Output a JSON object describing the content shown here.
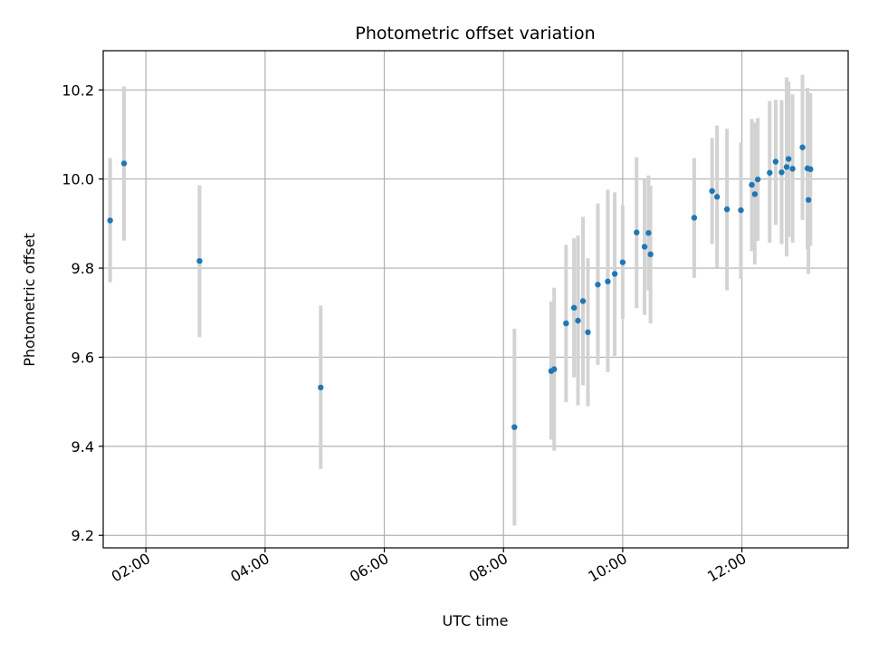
{
  "chart_data": {
    "type": "scatter",
    "title": "Photometric offset variation",
    "xlabel": "UTC time",
    "ylabel": "Photometric offset",
    "x_format": "HH:MM",
    "xlim": [
      "01:17",
      "13:47"
    ],
    "ylim": [
      9.172,
      10.288
    ],
    "x_ticks": [
      "02:00",
      "04:00",
      "06:00",
      "08:00",
      "10:00",
      "12:00"
    ],
    "y_ticks": [
      "9.2",
      "9.4",
      "9.6",
      "9.8",
      "10.0",
      "10.2"
    ],
    "grid": true,
    "legend": "none",
    "marker_color": "#1f77b4",
    "errorbar_color": "#d3d3d3",
    "series": [
      {
        "points": [
          {
            "x": "01:24",
            "y": 9.907,
            "ylo": 9.768,
            "yhi": 10.047
          },
          {
            "x": "01:38",
            "y": 10.035,
            "ylo": 9.862,
            "yhi": 10.208
          },
          {
            "x": "02:54",
            "y": 9.816,
            "ylo": 9.645,
            "yhi": 9.986
          },
          {
            "x": "04:56",
            "y": 9.532,
            "ylo": 9.349,
            "yhi": 9.716
          },
          {
            "x": "08:11",
            "y": 9.443,
            "ylo": 9.222,
            "yhi": 9.664
          },
          {
            "x": "08:48",
            "y": 9.569,
            "ylo": 9.415,
            "yhi": 9.725
          },
          {
            "x": "08:51",
            "y": 9.573,
            "ylo": 9.39,
            "yhi": 9.756
          },
          {
            "x": "09:03",
            "y": 9.676,
            "ylo": 9.499,
            "yhi": 9.852
          },
          {
            "x": "09:11",
            "y": 9.711,
            "ylo": 9.555,
            "yhi": 9.867
          },
          {
            "x": "09:15",
            "y": 9.682,
            "ylo": 9.492,
            "yhi": 9.873
          },
          {
            "x": "09:20",
            "y": 9.726,
            "ylo": 9.537,
            "yhi": 9.915
          },
          {
            "x": "09:25",
            "y": 9.656,
            "ylo": 9.49,
            "yhi": 9.822
          },
          {
            "x": "09:35",
            "y": 9.763,
            "ylo": 9.583,
            "yhi": 9.945
          },
          {
            "x": "09:45",
            "y": 9.77,
            "ylo": 9.566,
            "yhi": 9.976
          },
          {
            "x": "09:52",
            "y": 9.787,
            "ylo": 9.603,
            "yhi": 9.97
          },
          {
            "x": "10:00",
            "y": 9.813,
            "ylo": 9.686,
            "yhi": 9.941
          },
          {
            "x": "10:14",
            "y": 9.88,
            "ylo": 9.71,
            "yhi": 10.049
          },
          {
            "x": "10:22",
            "y": 9.848,
            "ylo": 9.695,
            "yhi": 10.0
          },
          {
            "x": "10:26",
            "y": 9.879,
            "ylo": 9.75,
            "yhi": 10.008
          },
          {
            "x": "10:28",
            "y": 9.831,
            "ylo": 9.676,
            "yhi": 9.985
          },
          {
            "x": "11:12",
            "y": 9.913,
            "ylo": 9.778,
            "yhi": 10.047
          },
          {
            "x": "11:30",
            "y": 9.973,
            "ylo": 9.854,
            "yhi": 10.092
          },
          {
            "x": "11:35",
            "y": 9.96,
            "ylo": 9.801,
            "yhi": 10.12
          },
          {
            "x": "11:45",
            "y": 9.932,
            "ylo": 9.75,
            "yhi": 10.113
          },
          {
            "x": "11:59",
            "y": 9.93,
            "ylo": 9.776,
            "yhi": 10.082
          },
          {
            "x": "12:10",
            "y": 9.987,
            "ylo": 9.838,
            "yhi": 10.135
          },
          {
            "x": "12:13",
            "y": 9.966,
            "ylo": 9.808,
            "yhi": 10.127
          },
          {
            "x": "12:16",
            "y": 9.999,
            "ylo": 9.861,
            "yhi": 10.137
          },
          {
            "x": "12:28",
            "y": 10.014,
            "ylo": 9.857,
            "yhi": 10.175
          },
          {
            "x": "12:34",
            "y": 10.039,
            "ylo": 9.897,
            "yhi": 10.178
          },
          {
            "x": "12:40",
            "y": 10.015,
            "ylo": 9.854,
            "yhi": 10.177
          },
          {
            "x": "12:45",
            "y": 10.027,
            "ylo": 9.826,
            "yhi": 10.228
          },
          {
            "x": "12:47",
            "y": 10.045,
            "ylo": 9.87,
            "yhi": 10.219
          },
          {
            "x": "12:51",
            "y": 10.023,
            "ylo": 9.857,
            "yhi": 10.19
          },
          {
            "x": "13:01",
            "y": 10.071,
            "ylo": 9.908,
            "yhi": 10.234
          },
          {
            "x": "13:06",
            "y": 10.024,
            "ylo": 9.842,
            "yhi": 10.205
          },
          {
            "x": "13:07",
            "y": 9.953,
            "ylo": 9.787,
            "yhi": 10.118
          },
          {
            "x": "13:09",
            "y": 10.022,
            "ylo": 9.85,
            "yhi": 10.193
          }
        ]
      }
    ]
  }
}
